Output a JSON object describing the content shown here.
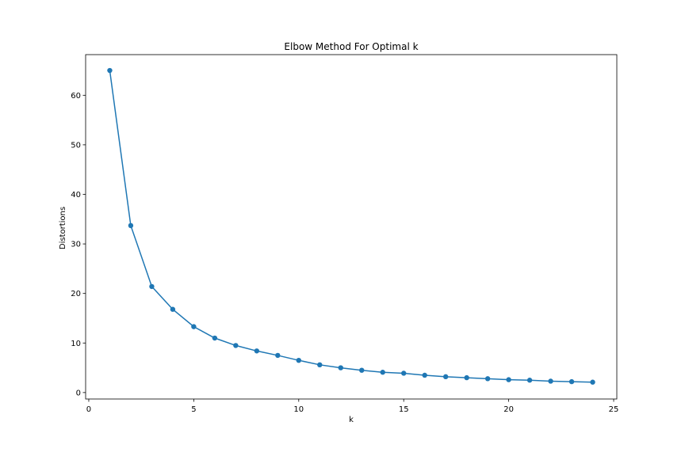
{
  "chart_data": {
    "type": "line",
    "title": "Elbow Method For Optimal k",
    "xlabel": "k",
    "ylabel": "Distortions",
    "xlim": [
      -0.15,
      25.15
    ],
    "ylim": [
      -1.3,
      68.2
    ],
    "xticks": [
      0,
      5,
      10,
      15,
      20,
      25
    ],
    "yticks": [
      0,
      10,
      20,
      30,
      40,
      50,
      60
    ],
    "grid": false,
    "colors": {
      "series": "#1f77b4",
      "axes": "#000000",
      "background": "#ffffff"
    },
    "series": [
      {
        "name": "distortions",
        "marker": "circle",
        "x": [
          1,
          2,
          3,
          4,
          5,
          6,
          7,
          8,
          9,
          10,
          11,
          12,
          13,
          14,
          15,
          16,
          17,
          18,
          19,
          20,
          21,
          22,
          23,
          24
        ],
        "y": [
          65.0,
          33.7,
          21.4,
          16.8,
          13.3,
          11.0,
          9.5,
          8.4,
          7.5,
          6.5,
          5.6,
          5.0,
          4.5,
          4.1,
          3.9,
          3.5,
          3.2,
          3.0,
          2.8,
          2.6,
          2.5,
          2.3,
          2.2,
          2.1
        ]
      }
    ]
  }
}
